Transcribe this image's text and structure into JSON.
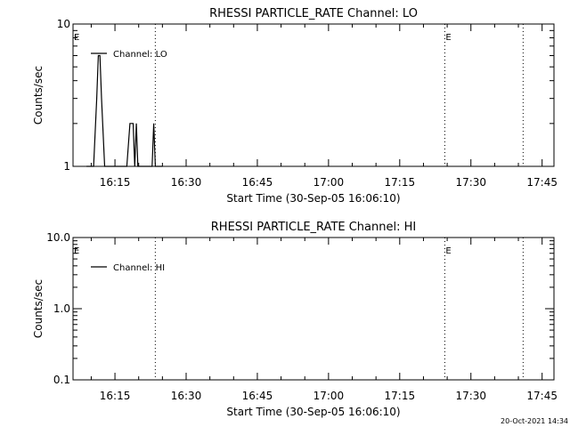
{
  "footer": {
    "timestamp": "20-Oct-2021 14:34"
  },
  "chart_data": [
    {
      "type": "line",
      "title": "RHESSI PARTICLE_RATE Channel: LO",
      "xlabel": "Start Time (30-Sep-05 16:06:10)",
      "ylabel": "Counts/sec",
      "yscale": "log",
      "ylim": [
        1,
        10
      ],
      "y_ticks": [
        1,
        10
      ],
      "y_tick_labels": [
        "1",
        "10"
      ],
      "xlim": [
        "16:06:10",
        "17:47:30"
      ],
      "x_ticks": [
        "16:15",
        "16:30",
        "16:45",
        "17:00",
        "17:15",
        "17:30",
        "17:45"
      ],
      "series": [
        {
          "name": "Channel: LO",
          "x": [
            "16:09:00",
            "16:10:30",
            "16:11:10",
            "16:11:30",
            "16:11:50",
            "16:12:10",
            "16:12:50",
            "16:14:00",
            "16:17:30",
            "16:18:10",
            "16:18:50",
            "16:19:10",
            "16:19:30",
            "16:19:50",
            "16:22:50",
            "16:23:10",
            "16:23:30",
            "16:25:00"
          ],
          "y": [
            1,
            1,
            3,
            6,
            6,
            3,
            1,
            1,
            1,
            2,
            2,
            1,
            2,
            1,
            1,
            2,
            1,
            1
          ]
        }
      ],
      "vlines": [
        "16:23:30",
        "17:24:30",
        "17:41:00"
      ],
      "markers": [
        {
          "text": "E",
          "x": "16:06:10"
        },
        {
          "text": "E",
          "x": "17:24:30"
        }
      ],
      "legend_position": "top-left"
    },
    {
      "type": "line",
      "title": "RHESSI PARTICLE_RATE Channel: HI",
      "xlabel": "Start Time (30-Sep-05 16:06:10)",
      "ylabel": "Counts/sec",
      "yscale": "log",
      "ylim": [
        0.1,
        10
      ],
      "y_ticks": [
        0.1,
        1,
        10
      ],
      "y_tick_labels": [
        "0.1",
        "1.0",
        "10.0"
      ],
      "xlim": [
        "16:06:10",
        "17:47:30"
      ],
      "x_ticks": [
        "16:15",
        "16:30",
        "16:45",
        "17:00",
        "17:15",
        "17:30",
        "17:45"
      ],
      "series": [
        {
          "name": "Channel: HI",
          "x": [],
          "y": []
        }
      ],
      "vlines": [
        "16:23:30",
        "17:24:30",
        "17:41:00"
      ],
      "markers": [
        {
          "text": "E",
          "x": "16:06:10"
        },
        {
          "text": "E",
          "x": "17:24:30"
        }
      ],
      "legend_position": "top-left"
    }
  ]
}
